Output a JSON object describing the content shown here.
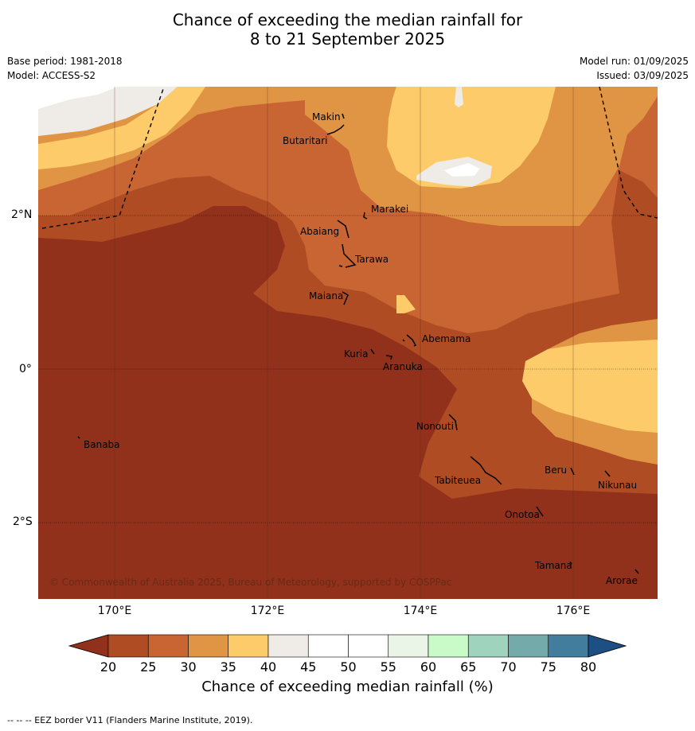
{
  "title_line1": "Chance of exceeding the median rainfall for",
  "title_line2": "8 to 21 September 2025",
  "base_period": "Base period: 1981-2018",
  "model": "Model: ACCESS-S2",
  "model_run": "Model run: 01/09/2025",
  "issued": "Issued: 03/09/2025",
  "lat_labels": [
    "2°N",
    "0°",
    "2°S"
  ],
  "lon_labels": [
    "170°E",
    "172°E",
    "174°E",
    "176°E"
  ],
  "places": {
    "makin": "Makin",
    "butaritari": "Butaritari",
    "marakei": "Marakei",
    "abaiang": "Abaiang",
    "tarawa": "Tarawa",
    "maiana": "Maiana",
    "abemama": "Abemama",
    "kuria": "Kuria",
    "aranuka": "Aranuka",
    "banaba": "Banaba",
    "nonouti": "Nonouti",
    "tabiteuea": "Tabiteuea",
    "beru": "Beru",
    "nikunau": "Nikunau",
    "onotoa": "Onotoa",
    "tamana": "Tamana",
    "arorae": "Arorae"
  },
  "copyright": "© Commonwealth of Australia 2025, Bureau of Meteorology, supported by COSPPac",
  "colorbar": {
    "ticks": [
      "20",
      "25",
      "30",
      "35",
      "40",
      "45",
      "50",
      "55",
      "60",
      "65",
      "70",
      "75",
      "80"
    ],
    "colors": [
      "#b04c24",
      "#c96533",
      "#e09545",
      "#fdcb6a",
      "#efebe6",
      "#ffffff",
      "#ffffff",
      "#eaf5e8",
      "#c8fbc8",
      "#9fd3be",
      "#74aaa9",
      "#437d9d"
    ],
    "under_color": "#91311b",
    "over_color": "#1d4f82",
    "label": "Chance of exceeding median rainfall (%)"
  },
  "footnote": "--  --  -- EEZ border V11 (Flanders Marine Institute, 2019)."
}
